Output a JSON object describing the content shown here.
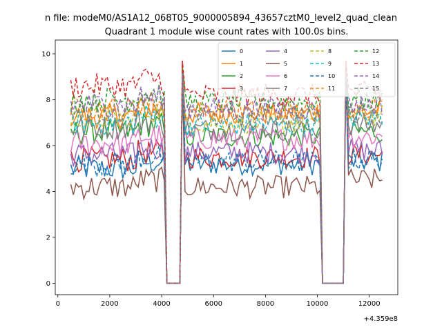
{
  "figure": {
    "suptitle": "n file: modeM0/AS1A12_068T05_9000005894_43657cztM0_level2_quad_clean",
    "title": "Quadrant 1 module wise count rates with 100.0s bins.",
    "x_offset_label": "+4.359e8"
  },
  "chart_data": {
    "type": "line",
    "title": "Quadrant 1 module wise count rates with 100.0s bins.",
    "xlabel": "",
    "ylabel": "",
    "x_offset": "+4.359e8",
    "xlim": [
      -100,
      13100
    ],
    "ylim": [
      -0.5,
      10.6
    ],
    "xticks": [
      0,
      2000,
      4000,
      6000,
      8000,
      10000,
      12000
    ],
    "yticks": [
      0,
      2,
      4,
      6,
      8,
      10
    ],
    "grid": false,
    "legend": {
      "placement": "top-right",
      "columns": 4
    },
    "x_start": 500,
    "x_step": 100,
    "gaps": [
      {
        "x_from": 4200,
        "x_to": 4700,
        "value": 0
      },
      {
        "x_from": 10200,
        "x_to": 11000,
        "value": 0
      }
    ],
    "series": [
      {
        "name": "0",
        "color": "#1f77b4",
        "dash": "solid",
        "level_a": 5.0,
        "level_b": 5.2,
        "level_c": 5.3,
        "spike": 9.2
      },
      {
        "name": "1",
        "color": "#ff7f0e",
        "dash": "solid",
        "level_a": 7.3,
        "level_b": 7.4,
        "level_c": 7.5,
        "spike": 9.4
      },
      {
        "name": "2",
        "color": "#2ca02c",
        "dash": "solid",
        "level_a": 6.6,
        "level_b": 6.4,
        "level_c": 6.6,
        "spike": 9.0
      },
      {
        "name": "3",
        "color": "#d62728",
        "dash": "solid",
        "level_a": 5.4,
        "level_b": 5.5,
        "level_c": 5.6,
        "spike": 9.7
      },
      {
        "name": "4",
        "color": "#9467bd",
        "dash": "solid",
        "level_a": 5.6,
        "level_b": 5.7,
        "level_c": 5.8,
        "spike": 9.1
      },
      {
        "name": "5",
        "color": "#8c564b",
        "dash": "solid",
        "level_a": 4.2,
        "level_b": 4.2,
        "level_c": 4.5,
        "spike": 8.8
      },
      {
        "name": "6",
        "color": "#e377c2",
        "dash": "solid",
        "level_a": 6.1,
        "level_b": 6.3,
        "level_c": 6.4,
        "spike": 9.0
      },
      {
        "name": "7",
        "color": "#7f7f7f",
        "dash": "solid",
        "level_a": 6.8,
        "level_b": 6.7,
        "level_c": 6.9,
        "spike": 9.3
      },
      {
        "name": "8",
        "color": "#bcbd22",
        "dash": "dashed",
        "level_a": 7.2,
        "level_b": 7.0,
        "level_c": 7.3,
        "spike": 9.0
      },
      {
        "name": "9",
        "color": "#17becf",
        "dash": "dashed",
        "level_a": 7.0,
        "level_b": 6.9,
        "level_c": 7.2,
        "spike": 9.1
      },
      {
        "name": "10",
        "color": "#1f77b4",
        "dash": "dashed",
        "level_a": 5.2,
        "level_b": 5.3,
        "level_c": 5.4,
        "spike": 9.0
      },
      {
        "name": "11",
        "color": "#ff7f0e",
        "dash": "dashed",
        "level_a": 7.6,
        "level_b": 7.5,
        "level_c": 7.7,
        "spike": 9.5
      },
      {
        "name": "12",
        "color": "#2ca02c",
        "dash": "dashed",
        "level_a": 8.0,
        "level_b": 7.9,
        "level_c": 8.0,
        "spike": 9.4
      },
      {
        "name": "13",
        "color": "#d62728",
        "dash": "dashed",
        "level_a": 8.6,
        "level_b": 8.2,
        "level_c": 8.3,
        "spike": 9.7
      },
      {
        "name": "14",
        "color": "#9467bd",
        "dash": "dashed",
        "level_a": 7.8,
        "level_b": 7.6,
        "level_c": 7.8,
        "spike": 9.2
      },
      {
        "name": "15",
        "color": "#7f7f7f",
        "dash": "dashed",
        "level_a": 7.5,
        "level_b": 7.3,
        "level_c": 7.4,
        "spike": 9.1
      }
    ]
  }
}
